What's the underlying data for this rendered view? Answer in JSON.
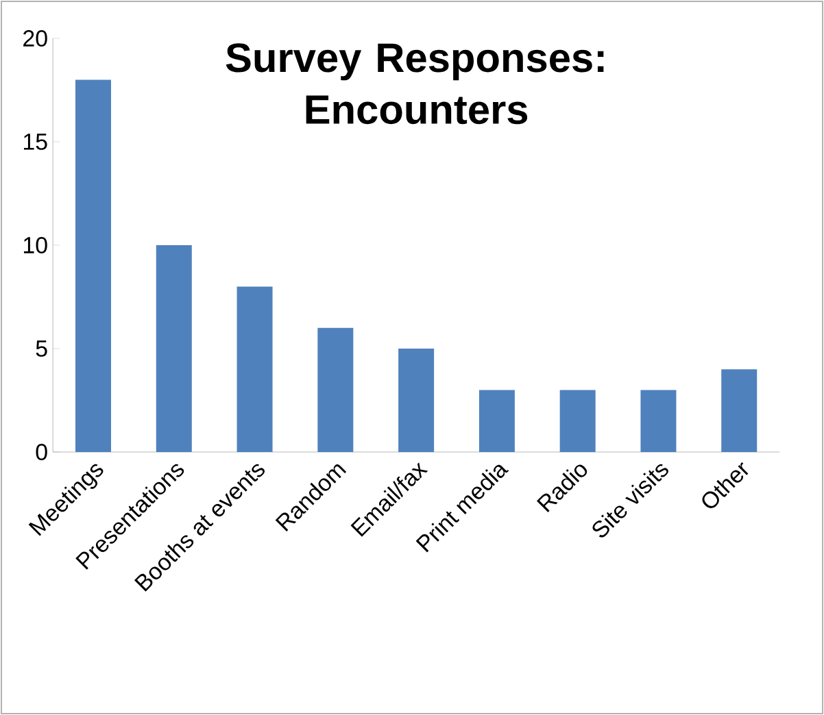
{
  "chart_data": {
    "type": "bar",
    "title": "Survey Responses: Encounters",
    "categories": [
      "Meetings",
      "Presentations",
      "Booths at events",
      "Random",
      "Email/fax",
      "Print media",
      "Radio",
      "Site visits",
      "Other"
    ],
    "values": [
      18,
      10,
      8,
      6,
      5,
      3,
      3,
      3,
      4
    ],
    "color": "#4f81bd",
    "ylim": [
      0,
      20
    ],
    "yticks": [
      0,
      5,
      10,
      15,
      20
    ],
    "grid": false
  }
}
